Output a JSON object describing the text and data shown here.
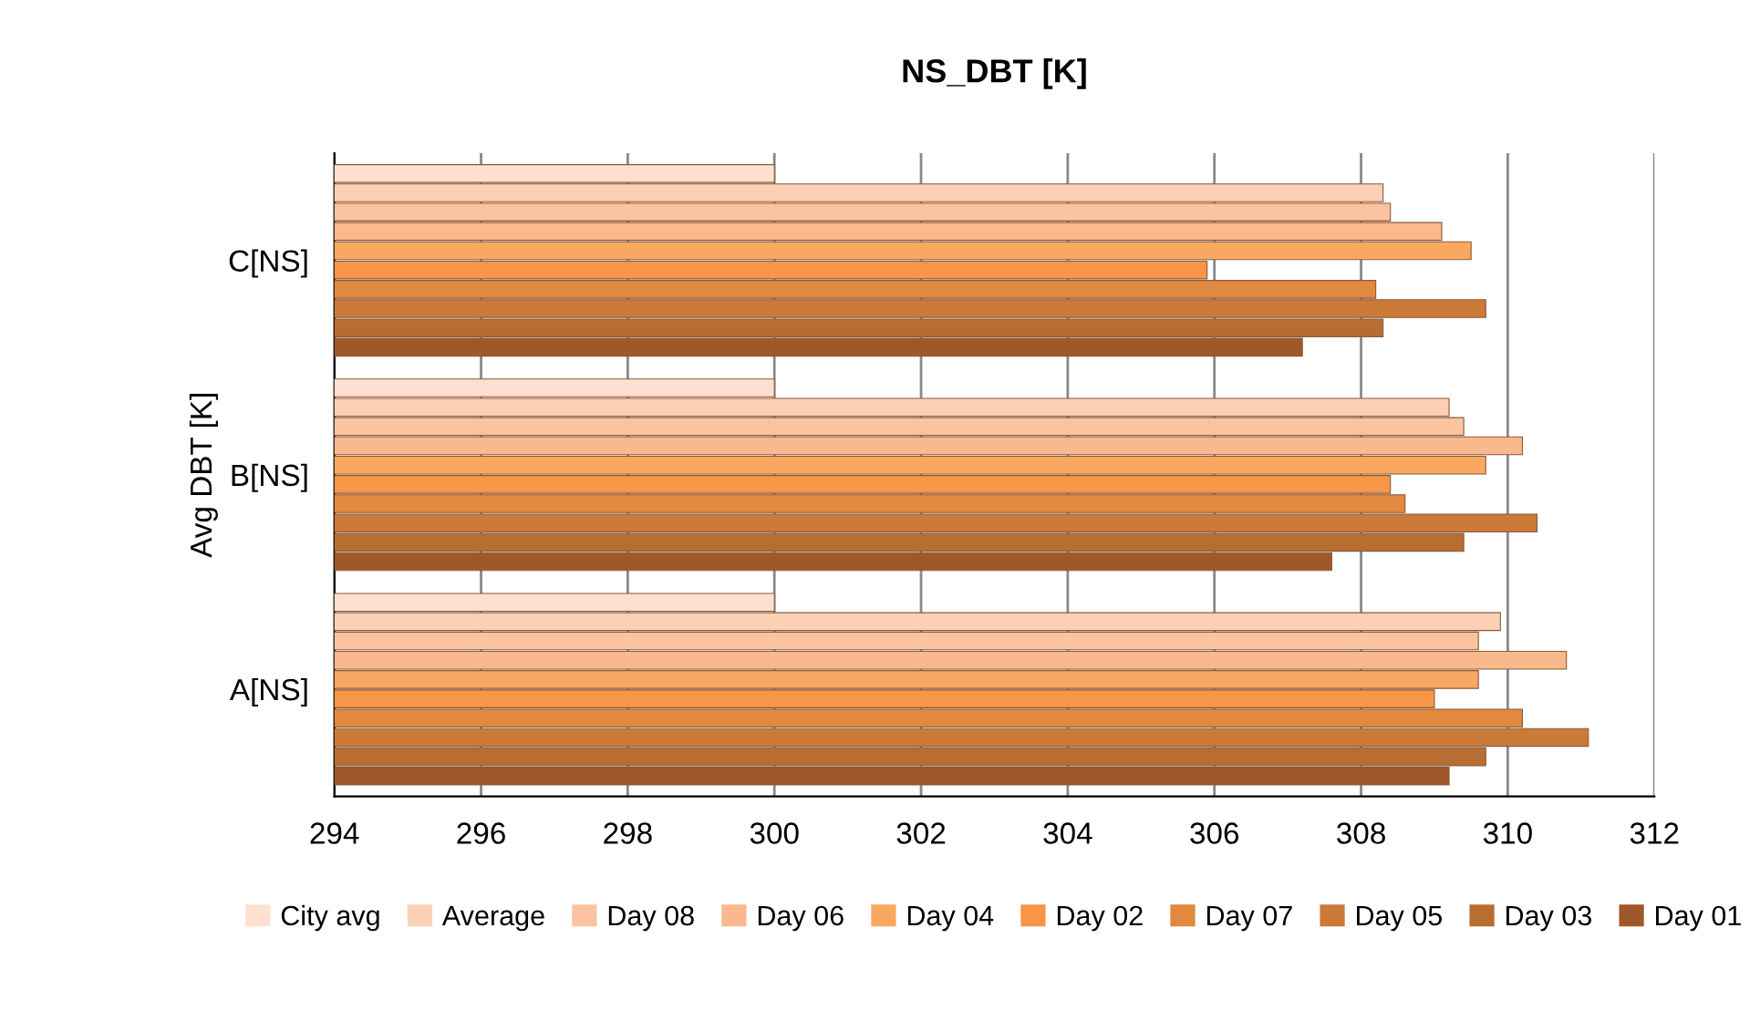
{
  "chart_data": {
    "type": "bar",
    "orientation": "horizontal",
    "title": "NS_DBT [K]",
    "ylabel": "Avg DBT [K]",
    "categories": [
      "C[NS]",
      "B[NS]",
      "A[NS]"
    ],
    "series": [
      {
        "name": "City avg",
        "color": "#fde0cf",
        "values": [
          300.0,
          300.0,
          300.0
        ]
      },
      {
        "name": "Average",
        "color": "#fcd0b4",
        "values": [
          308.3,
          309.2,
          309.9
        ]
      },
      {
        "name": "Day 08",
        "color": "#fbc39f",
        "values": [
          308.4,
          309.4,
          309.6
        ]
      },
      {
        "name": "Day 06",
        "color": "#fab98c",
        "values": [
          309.1,
          310.2,
          310.8
        ]
      },
      {
        "name": "Day 04",
        "color": "#f9a862",
        "values": [
          309.5,
          309.7,
          309.6
        ]
      },
      {
        "name": "Day 02",
        "color": "#f79646",
        "values": [
          305.9,
          308.4,
          309.0
        ]
      },
      {
        "name": "Day 07",
        "color": "#e0893f",
        "values": [
          308.2,
          308.6,
          310.2
        ]
      },
      {
        "name": "Day 05",
        "color": "#cc7a38",
        "values": [
          309.7,
          310.4,
          311.1
        ]
      },
      {
        "name": "Day 03",
        "color": "#b86d32",
        "values": [
          308.3,
          309.4,
          309.7
        ]
      },
      {
        "name": "Day 01",
        "color": "#a0582a",
        "values": [
          307.2,
          307.6,
          309.2
        ]
      }
    ],
    "xlim": [
      294,
      312
    ],
    "xticks": [
      294,
      296,
      298,
      300,
      302,
      304,
      306,
      308,
      310,
      312
    ],
    "grid": "x",
    "legend": "bottom"
  }
}
